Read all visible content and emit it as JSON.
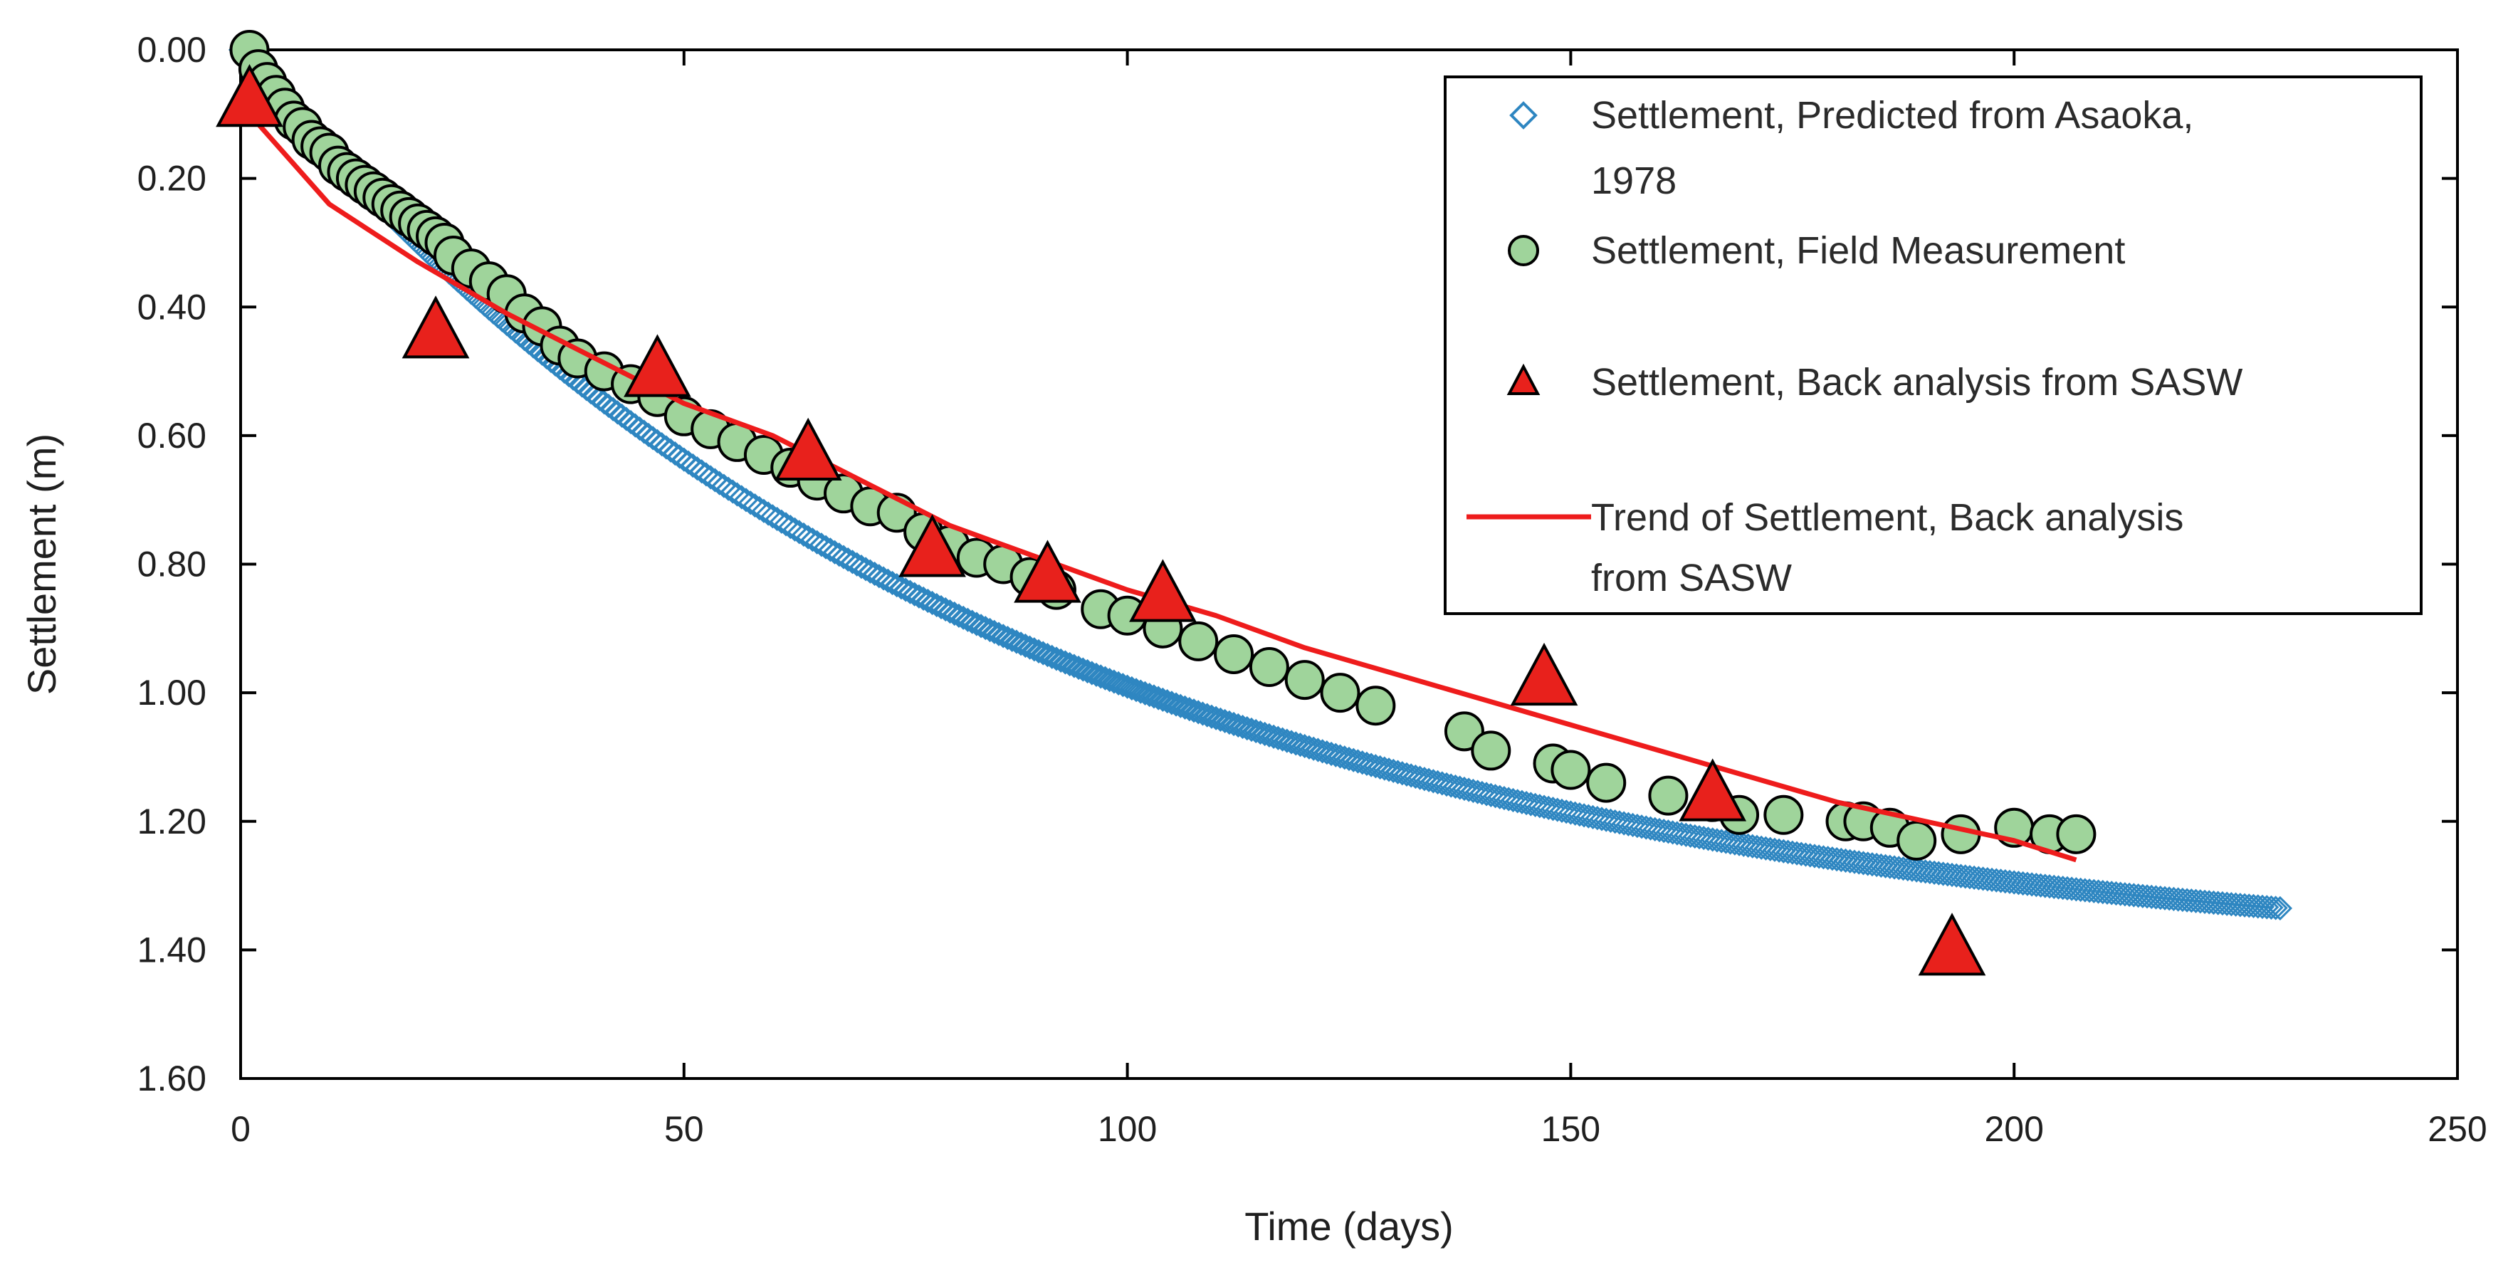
{
  "chart_data": {
    "type": "scatter",
    "xlabel": "Time (days)",
    "ylabel": "Settlement (m)",
    "xlim": [
      0,
      250
    ],
    "ylim": [
      0,
      1.6
    ],
    "y_inverted": true,
    "x_ticks": [
      0,
      50,
      100,
      150,
      200,
      250
    ],
    "y_ticks": [
      0,
      0.2,
      0.4,
      0.6,
      0.8,
      1.0,
      1.2,
      1.4,
      1.6
    ],
    "x_tick_labels": [
      "0",
      "50",
      "100",
      "150",
      "200",
      "250"
    ],
    "y_tick_labels": [
      "0.00",
      "0.20",
      "0.40",
      "0.60",
      "0.80",
      "1.00",
      "1.20",
      "1.40",
      "1.60"
    ],
    "grid": false,
    "legend_position": "top-right",
    "legend": [
      {
        "lines": [
          "Settlement, Predicted from Asaoka,",
          "1978"
        ]
      },
      {
        "lines": [
          "Settlement, Field Measurement"
        ]
      },
      {
        "lines": [
          "Settlement, Back analysis from SASW"
        ]
      },
      {
        "lines": [
          "Trend of Settlement, Back analysis",
          "from SASW"
        ]
      }
    ],
    "series": [
      {
        "name": "Settlement, Predicted from Asaoka, 1978",
        "marker": "diamond-open",
        "color": "#2e86c1",
        "model": {
          "form": "exponential",
          "ultimate": 1.43,
          "rate": 0.0118,
          "x_start": 0,
          "x_end": 230,
          "step": 0.5
        },
        "x_end_value": 230,
        "y_end_value": 1.33
      },
      {
        "name": "Settlement, Field Measurement",
        "marker": "circle",
        "color": "#9fd49b",
        "x": [
          1,
          2,
          3,
          4,
          5,
          6,
          7,
          8,
          9,
          10,
          11,
          12,
          13,
          14,
          15,
          16,
          17,
          18,
          19,
          20,
          21,
          22,
          23,
          24,
          26,
          28,
          30,
          32,
          34,
          36,
          38,
          41,
          44,
          47,
          50,
          53,
          56,
          59,
          62,
          65,
          68,
          71,
          74,
          77,
          80,
          83,
          86,
          89,
          92,
          97,
          100,
          104,
          108,
          112,
          116,
          120,
          124,
          128,
          138,
          141,
          148,
          150,
          154,
          161,
          166,
          169,
          174,
          181,
          183,
          186,
          189,
          194,
          200,
          204,
          207
        ],
        "y": [
          0.0,
          0.03,
          0.05,
          0.07,
          0.09,
          0.11,
          0.12,
          0.14,
          0.15,
          0.16,
          0.18,
          0.19,
          0.2,
          0.21,
          0.22,
          0.23,
          0.24,
          0.25,
          0.26,
          0.27,
          0.28,
          0.29,
          0.3,
          0.32,
          0.34,
          0.36,
          0.38,
          0.41,
          0.43,
          0.46,
          0.48,
          0.5,
          0.52,
          0.54,
          0.57,
          0.59,
          0.61,
          0.63,
          0.65,
          0.67,
          0.69,
          0.71,
          0.72,
          0.75,
          0.77,
          0.79,
          0.8,
          0.82,
          0.84,
          0.87,
          0.88,
          0.9,
          0.92,
          0.94,
          0.96,
          0.98,
          1.0,
          1.02,
          1.06,
          1.09,
          1.11,
          1.12,
          1.14,
          1.16,
          1.17,
          1.19,
          1.19,
          1.2,
          1.2,
          1.21,
          1.23,
          1.22,
          1.21,
          1.22,
          1.22
        ]
      },
      {
        "name": "Settlement, Back analysis from SASW",
        "marker": "triangle",
        "color": "#e8211c",
        "x": [
          1,
          22,
          47,
          64,
          78,
          91,
          104,
          147,
          166,
          193
        ],
        "y": [
          0.08,
          0.44,
          0.5,
          0.63,
          0.78,
          0.82,
          0.85,
          0.98,
          1.16,
          1.4
        ]
      },
      {
        "name": "Trend of Settlement, Back analysis from SASW",
        "marker": "line",
        "color": "#ee1c1c",
        "x": [
          1,
          10,
          20,
          30,
          40,
          50,
          60,
          70,
          80,
          90,
          100,
          110,
          120,
          130,
          140,
          150,
          160,
          170,
          180,
          190,
          200,
          207
        ],
        "y": [
          0.1,
          0.24,
          0.33,
          0.41,
          0.48,
          0.55,
          0.6,
          0.67,
          0.74,
          0.79,
          0.84,
          0.88,
          0.93,
          0.97,
          1.01,
          1.05,
          1.09,
          1.13,
          1.17,
          1.2,
          1.23,
          1.26
        ]
      }
    ]
  }
}
